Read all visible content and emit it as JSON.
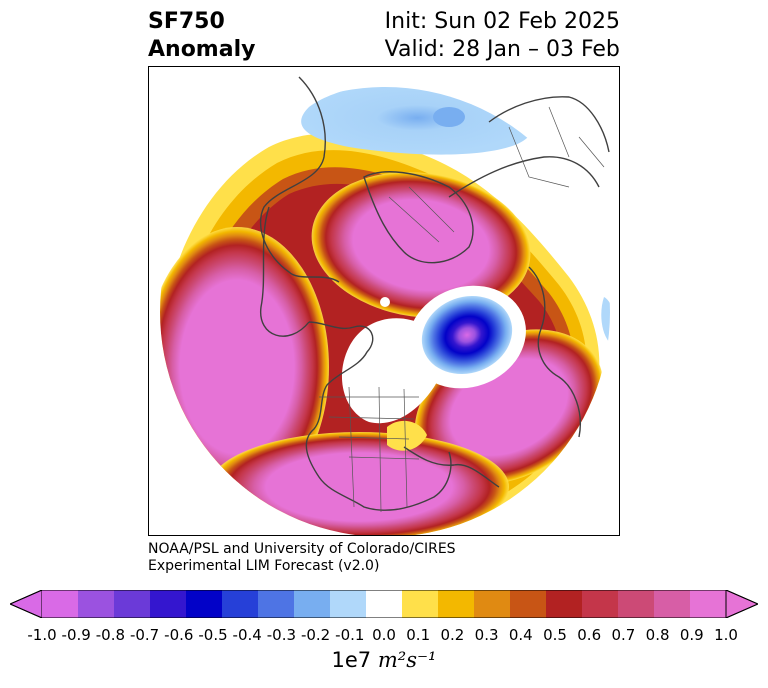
{
  "title": {
    "variable": "SF750",
    "subtitle": "Anomaly",
    "init": "Init: Sun 02 Feb 2025",
    "valid": "Valid: 28 Jan – 03 Feb"
  },
  "credit": {
    "line1": "NOAA/PSL and University of Colorado/CIRES",
    "line2": "Experimental LIM Forecast (v2.0)"
  },
  "colorbar": {
    "units_prefix": "1e7",
    "units": "m²s⁻¹",
    "ticks": [
      "-1.0",
      "-0.9",
      "-0.8",
      "-0.7",
      "-0.6",
      "-0.5",
      "-0.4",
      "-0.3",
      "-0.2",
      "-0.1",
      "0.0",
      "0.1",
      "0.2",
      "0.3",
      "0.4",
      "0.5",
      "0.6",
      "0.7",
      "0.8",
      "0.9",
      "1.0"
    ],
    "colors": [
      "#d96ae6",
      "#9b52e0",
      "#6b3ad8",
      "#3416cf",
      "#0202c8",
      "#2640d8",
      "#4e74e4",
      "#78aef0",
      "#b0d8fa",
      "#ffffff",
      "#ffe04a",
      "#f3b800",
      "#e08a12",
      "#c85515",
      "#b22222",
      "#c4364a",
      "#cc4a76",
      "#d75ea6",
      "#e673d6"
    ],
    "extend_low": "#d96ae6",
    "extend_high": "#e673d6"
  },
  "map": {
    "projection": "North polar stereographic",
    "field": "750 hPa streamfunction anomaly"
  }
}
